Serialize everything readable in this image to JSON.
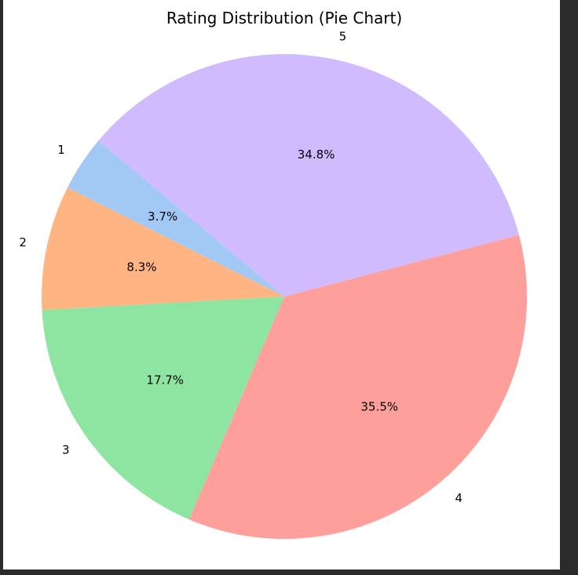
{
  "chart_data": {
    "type": "pie",
    "title": "Rating Distribution (Pie Chart)",
    "start_angle_deg": 140,
    "direction": "counterclockwise",
    "slices": [
      {
        "label": "1",
        "value": 3.7,
        "pct_label": "3.7%",
        "color": "#a1c9f4"
      },
      {
        "label": "2",
        "value": 8.3,
        "pct_label": "8.3%",
        "color": "#ffb482"
      },
      {
        "label": "3",
        "value": 17.7,
        "pct_label": "17.7%",
        "color": "#8de5a1"
      },
      {
        "label": "4",
        "value": 35.5,
        "pct_label": "35.5%",
        "color": "#ff9f9b"
      },
      {
        "label": "5",
        "value": 34.8,
        "pct_label": "34.8%",
        "color": "#d0bbff"
      }
    ]
  }
}
